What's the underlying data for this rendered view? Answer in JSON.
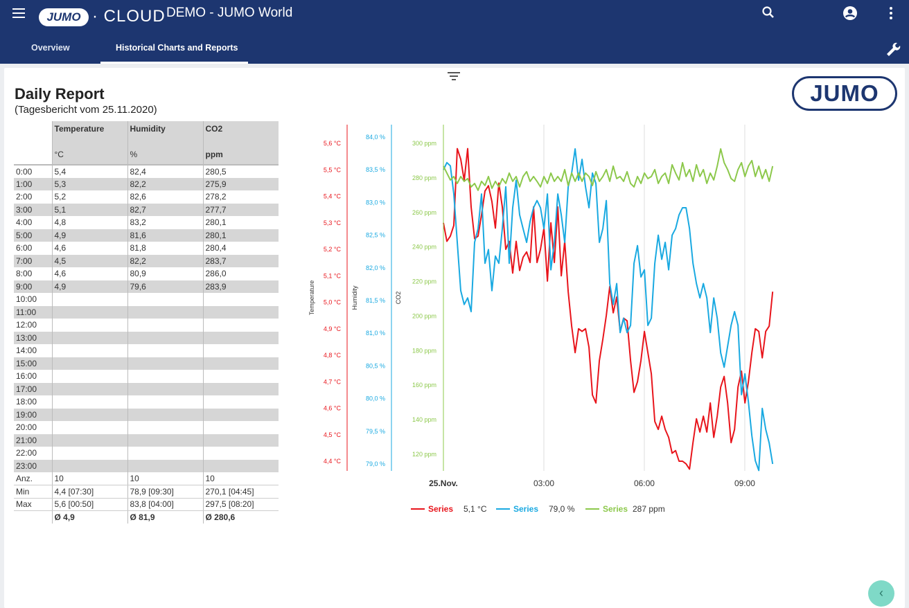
{
  "header": {
    "logo_text": "JUMO",
    "cloud_text": "CLOUD",
    "title": "DEMO - JUMO World"
  },
  "tabs": [
    {
      "label": "Overview"
    },
    {
      "label": "Historical Charts and Reports",
      "active": true
    }
  ],
  "report": {
    "title": "Daily Report",
    "subtitle": "(Tagesbericht vom 25.11.2020)",
    "logo": "JUMO"
  },
  "table": {
    "columns": [
      {
        "name": "Temperature",
        "unit": "°C"
      },
      {
        "name": "Humidity",
        "unit": "%"
      },
      {
        "name": "CO2",
        "unit": "ppm"
      }
    ],
    "rows": [
      [
        "0:00",
        "5,4",
        "82,4",
        "280,5"
      ],
      [
        "1:00",
        "5,3",
        "82,2",
        "275,9"
      ],
      [
        "2:00",
        "5,2",
        "82,6",
        "278,2"
      ],
      [
        "3:00",
        "5,1",
        "82,7",
        "277,7"
      ],
      [
        "4:00",
        "4,8",
        "83,2",
        "280,1"
      ],
      [
        "5:00",
        "4,9",
        "81,6",
        "280,1"
      ],
      [
        "6:00",
        "4,6",
        "81,8",
        "280,4"
      ],
      [
        "7:00",
        "4,5",
        "82,2",
        "283,7"
      ],
      [
        "8:00",
        "4,6",
        "80,9",
        "286,0"
      ],
      [
        "9:00",
        "4,9",
        "79,6",
        "283,9"
      ],
      [
        "10:00",
        "",
        "",
        ""
      ],
      [
        "11:00",
        "",
        "",
        ""
      ],
      [
        "12:00",
        "",
        "",
        ""
      ],
      [
        "13:00",
        "",
        "",
        ""
      ],
      [
        "14:00",
        "",
        "",
        ""
      ],
      [
        "15:00",
        "",
        "",
        ""
      ],
      [
        "16:00",
        "",
        "",
        ""
      ],
      [
        "17:00",
        "",
        "",
        ""
      ],
      [
        "18:00",
        "",
        "",
        ""
      ],
      [
        "19:00",
        "",
        "",
        ""
      ],
      [
        "20:00",
        "",
        "",
        ""
      ],
      [
        "21:00",
        "",
        "",
        ""
      ],
      [
        "22:00",
        "",
        "",
        ""
      ],
      [
        "23:00",
        "",
        "",
        ""
      ]
    ],
    "stats": [
      [
        "Anz.",
        "10",
        "10",
        "10"
      ],
      [
        "Min",
        "4,4 [07:30]",
        "78,9 [09:30]",
        "270,1 [04:45]"
      ],
      [
        "Max",
        "5,6 [00:50]",
        "83,8 [04:00]",
        "297,5 [08:20]"
      ],
      [
        "",
        "Ø 4,9",
        "Ø 81,9",
        "Ø 280,6"
      ]
    ]
  },
  "chart_data": {
    "type": "line",
    "x_unit": "hours since 25.Nov 00:00",
    "x_start": 0,
    "x_step": 0.1035,
    "xlim": [
      0,
      10
    ],
    "x_ticks": [
      {
        "h": 0,
        "label": "25.Nov."
      },
      {
        "h": 3,
        "label": "03:00"
      },
      {
        "h": 6,
        "label": "06:00"
      },
      {
        "h": 9,
        "label": "09:00"
      }
    ],
    "series": [
      {
        "name": "Series",
        "axis_title": "Temperature",
        "color": "#e8141b",
        "ylim": [
          4.4,
          5.6
        ],
        "tick_step": 0.1,
        "unit": "°C",
        "decimals": 1,
        "legend_value": "5,1 °C",
        "values": [
          5.3,
          5.23,
          5.25,
          5.29,
          5.58,
          5.54,
          5.46,
          5.58,
          5.36,
          5.24,
          5.25,
          5.33,
          5.42,
          5.44,
          5.38,
          5.28,
          5.45,
          5.36,
          5.2,
          5.23,
          5.11,
          5.23,
          5.12,
          5.17,
          5.19,
          5.15,
          5.36,
          5.15,
          5.2,
          5.28,
          5.08,
          5.3,
          5.15,
          5.36,
          5.1,
          5.23,
          5.04,
          4.91,
          4.81,
          4.9,
          4.89,
          4.9,
          4.83,
          4.65,
          4.62,
          4.78,
          4.86,
          4.95,
          5.06,
          4.96,
          5.02,
          4.89,
          4.94,
          4.93,
          4.78,
          4.66,
          4.7,
          4.78,
          4.89,
          4.81,
          4.73,
          4.55,
          4.52,
          4.57,
          4.52,
          4.49,
          4.43,
          4.44,
          4.4,
          4.4,
          4.39,
          4.37,
          4.47,
          4.56,
          4.51,
          4.57,
          4.51,
          4.62,
          4.49,
          4.57,
          4.68,
          4.72,
          4.62,
          4.47,
          4.52,
          4.68,
          4.74,
          4.62,
          4.7,
          4.81,
          4.9,
          4.89,
          4.79,
          4.89,
          4.91,
          5.04
        ]
      },
      {
        "name": "Series",
        "axis_title": "Humidity",
        "color": "#19a9e1",
        "ylim": [
          79.0,
          84.0
        ],
        "tick_step": 0.5,
        "unit": "%",
        "decimals": 1,
        "legend_value": "79,0 %",
        "values": [
          83.5,
          83.61,
          83.56,
          83.13,
          82.39,
          81.65,
          81.44,
          81.54,
          81.33,
          82.39,
          82.6,
          83.13,
          82.07,
          82.28,
          81.65,
          82.18,
          82.07,
          82.6,
          83.24,
          82.07,
          82.92,
          83.34,
          82.81,
          82.6,
          82.39,
          82.71,
          82.92,
          83.03,
          82.92,
          82.6,
          83.13,
          81.97,
          82.39,
          83.13,
          82.81,
          82.39,
          83.24,
          83.45,
          83.82,
          83.34,
          83.66,
          83.24,
          82.92,
          83.45,
          83.29,
          82.39,
          82.6,
          83.03,
          81.76,
          81.44,
          81.76,
          81.01,
          81.23,
          81.01,
          81.12,
          82.07,
          82.34,
          81.86,
          81.97,
          81.12,
          81.23,
          82.07,
          82.5,
          82.13,
          82.39,
          81.97,
          82.5,
          82.6,
          82.81,
          82.92,
          82.92,
          82.6,
          82.07,
          81.76,
          81.54,
          81.76,
          81.54,
          81.01,
          81.54,
          81.23,
          80.7,
          80.48,
          80.8,
          81.12,
          81.33,
          81.12,
          80.06,
          80.38,
          79.95,
          79.43,
          79.05,
          78.9,
          79.85,
          79.53,
          79.32,
          79.0
        ]
      },
      {
        "name": "Series",
        "axis_title": "CO2",
        "color": "#8cc84b",
        "ylim": [
          120,
          300
        ],
        "tick_step": 20,
        "unit": "ppm",
        "decimals": 0,
        "legend_value": "287 ppm",
        "values": [
          286.8,
          282.8,
          278.8,
          280.8,
          276.8,
          280.8,
          278,
          279.6,
          274.8,
          276.8,
          272.8,
          278,
          275.6,
          280.8,
          274,
          278,
          274.8,
          279.6,
          276.8,
          282.8,
          278,
          280.8,
          274.8,
          280.8,
          283.6,
          278,
          280.8,
          278,
          274.8,
          280.8,
          276.8,
          282.8,
          278,
          280.8,
          278,
          284.8,
          275.6,
          282.8,
          278,
          282.8,
          278,
          282.8,
          280.8,
          275.6,
          283.6,
          278,
          280.8,
          284.8,
          278,
          286.8,
          279.6,
          280.8,
          278,
          283.6,
          276.8,
          274.8,
          280.8,
          276.8,
          282.8,
          279.6,
          280.8,
          284.8,
          276.8,
          280.8,
          282.8,
          276.8,
          287.6,
          282.8,
          278.8,
          288.8,
          280.8,
          284.8,
          278,
          287.6,
          280.8,
          284.8,
          276.8,
          282.8,
          278.8,
          286.8,
          296.8,
          288.8,
          284.8,
          279.6,
          278,
          284.8,
          288.8,
          280.8,
          286.8,
          290,
          280.8,
          286.8,
          279.6,
          284.8,
          278,
          286.8
        ]
      }
    ]
  }
}
